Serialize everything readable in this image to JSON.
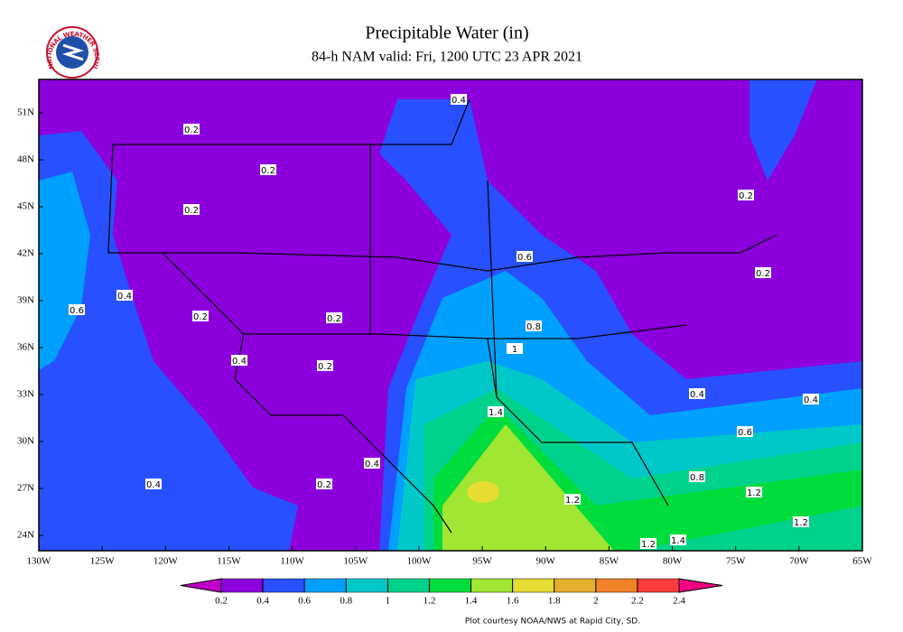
{
  "logo": {
    "text": "NATIONAL WEATHER SERVICE"
  },
  "header": {
    "title": "Precipitable Water (in)",
    "subtitle": "84-h NAM valid: Fri, 1200 UTC 23 APR 2021"
  },
  "map": {
    "lat_labels": [
      "51N",
      "48N",
      "45N",
      "42N",
      "39N",
      "36N",
      "33N",
      "30N",
      "27N",
      "24N"
    ],
    "lon_labels": [
      "130W",
      "125W",
      "120W",
      "115W",
      "110W",
      "105W",
      "100W",
      "95W",
      "90W",
      "85W",
      "80W",
      "75W",
      "70W",
      "65W"
    ],
    "contour_labels": [
      "0.2",
      "0.2",
      "0.2",
      "0.4",
      "0.6",
      "0.2",
      "0.2",
      "0.4",
      "0.6",
      "0.2",
      "0.2",
      "0.8",
      "1",
      "0.4",
      "0.2",
      "0.4",
      "0.4",
      "1.4",
      "0.6",
      "0.4",
      "0.2",
      "0.4",
      "0.8",
      "1.2",
      "1.2",
      "1.2",
      "1.4",
      "1.2"
    ]
  },
  "colorbar": {
    "range": [
      0.2,
      2.4
    ],
    "ticks": [
      0.2,
      0.4,
      0.6,
      0.8,
      1,
      1.2,
      1.4,
      1.6,
      1.8,
      2,
      2.2,
      2.4
    ],
    "colors": [
      "#c000c8",
      "#8c00dc",
      "#2850ff",
      "#00a0ff",
      "#00c8c8",
      "#00d28c",
      "#00dc3c",
      "#a0e632",
      "#e6dc32",
      "#e6af2d",
      "#f08228",
      "#fa3c3c",
      "#f00082"
    ]
  },
  "footer": {
    "credit": "Plot courtesy NOAA/NWS at Rapid City, SD."
  }
}
